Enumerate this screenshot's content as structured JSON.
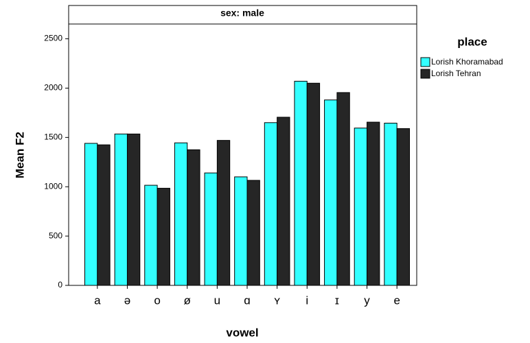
{
  "chart_data": {
    "type": "bar",
    "title": "sex: male",
    "x_label": "vowel",
    "y_label": "Mean F2",
    "legend_title": "place",
    "categories": [
      "a",
      "ə",
      "o",
      "ø",
      "u",
      "ɑ",
      "ʏ",
      "i",
      "ɪ",
      "y",
      "e"
    ],
    "series": [
      {
        "name": "Lorish Khoramabad",
        "color": "#33ffff",
        "values": [
          1440,
          1535,
          1015,
          1445,
          1140,
          1100,
          1650,
          2070,
          1880,
          1595,
          1645
        ]
      },
      {
        "name": "Lorish Tehran",
        "color": "#262626",
        "values": [
          1425,
          1535,
          985,
          1375,
          1470,
          1065,
          1705,
          2050,
          1955,
          1655,
          1590
        ]
      }
    ],
    "ylim": [
      0,
      2650
    ],
    "yticks": [
      0,
      500,
      1000,
      1500,
      2000,
      2500
    ],
    "grid": false,
    "legend_position": "right"
  }
}
